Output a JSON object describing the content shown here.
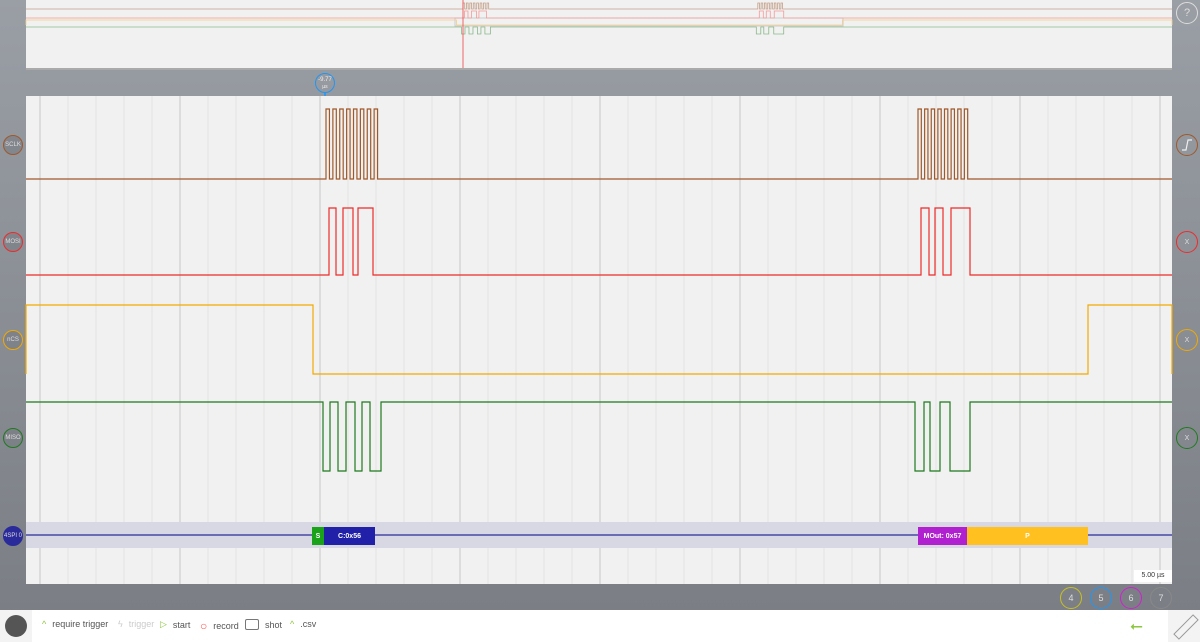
{
  "colors": {
    "sclk": "#a0582a",
    "mosi": "#ee2b2b",
    "cs": "#f2a900",
    "miso": "#1f7a1f",
    "spi": "#2a2a9a",
    "cursor": "#2196f3",
    "start": "#1aa31a",
    "cmd": "#2020a8",
    "mout": "#b020d0",
    "stop": "#ffc020",
    "accent": "#8dc63f"
  },
  "cursor": {
    "label": "-9.77",
    "unit": "µs"
  },
  "channels": [
    {
      "label": "SCLK",
      "right_icon": "trigger-edge-icon"
    },
    {
      "label": "MOSI",
      "right": "X"
    },
    {
      "label": "nCS",
      "right": "X"
    },
    {
      "label": "MISO",
      "right": "X"
    },
    {
      "label": "4SPI 0"
    }
  ],
  "decode": {
    "start": "S",
    "command": "C:0x56",
    "mout": "MOut: 0x57",
    "stop": "P"
  },
  "timebase": "5.00 µs",
  "help": "?",
  "bottom_buttons": [
    "4",
    "5",
    "6",
    "7"
  ],
  "toolbar": {
    "require_trigger": "require trigger",
    "trigger": "trigger",
    "start": "start",
    "record": "record",
    "shot": "shot",
    "csv": ".csv"
  }
}
